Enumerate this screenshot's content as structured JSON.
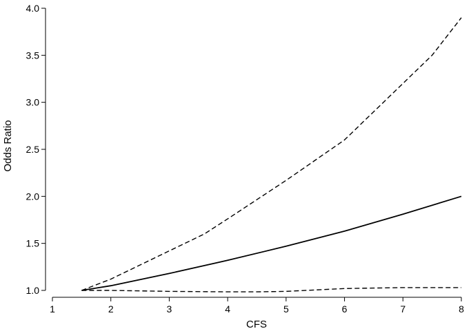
{
  "chart_data": {
    "type": "line",
    "title": "",
    "xlabel": "CFS",
    "ylabel": "Odds Ratio",
    "xlim": [
      1,
      8
    ],
    "ylim": [
      1.0,
      4.0
    ],
    "xticks": [
      1,
      2,
      3,
      4,
      5,
      6,
      7,
      8
    ],
    "yticks": [
      1.0,
      1.5,
      2.0,
      2.5,
      3.0,
      3.5,
      4.0
    ],
    "yticklabels": [
      "1.0",
      "1.5",
      "2.0",
      "2.5",
      "3.0",
      "3.5",
      "4.0"
    ],
    "grid": false,
    "series": [
      {
        "style": "solid",
        "x": [
          1.5,
          2,
          3,
          4,
          5,
          6,
          7,
          8
        ],
        "y": [
          1.0,
          1.05,
          1.18,
          1.32,
          1.47,
          1.63,
          1.81,
          2.0
        ]
      },
      {
        "style": "dashed",
        "x": [
          1.5,
          2,
          3,
          3.6,
          4,
          5,
          6,
          7,
          7.5,
          8
        ],
        "y": [
          1.0,
          1.12,
          1.42,
          1.6,
          1.76,
          2.17,
          2.6,
          3.2,
          3.5,
          3.9
        ]
      },
      {
        "style": "dashed",
        "x": [
          1.5,
          2,
          3,
          4,
          4.5,
          5,
          6,
          7,
          8
        ],
        "y": [
          1.0,
          1.0,
          0.99,
          0.985,
          0.985,
          0.99,
          1.02,
          1.03,
          1.03
        ]
      }
    ]
  }
}
